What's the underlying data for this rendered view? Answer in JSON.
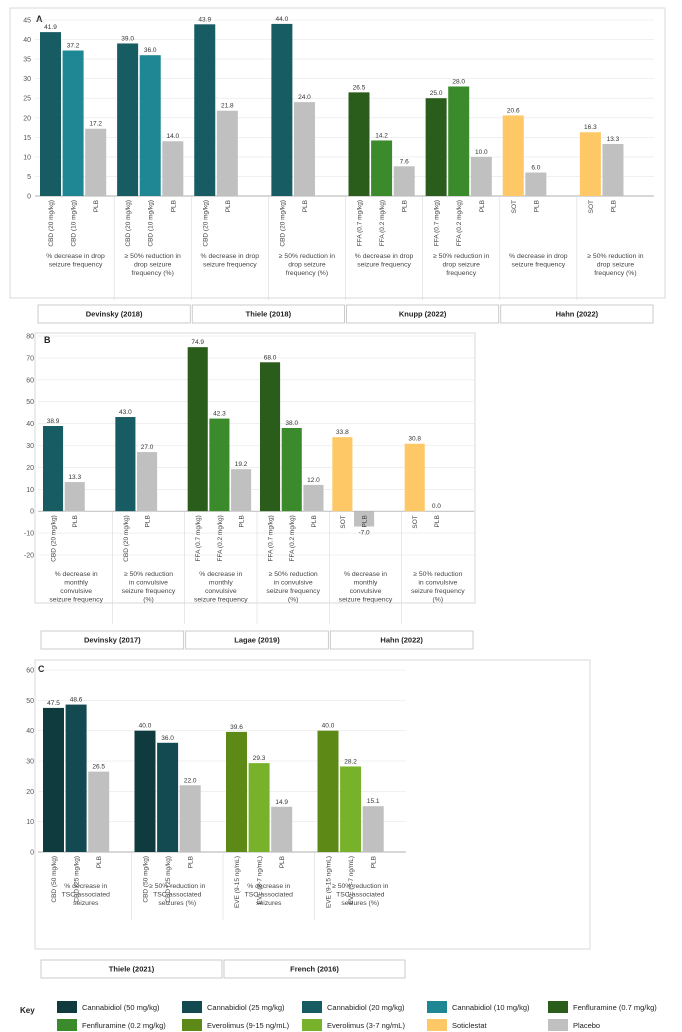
{
  "colors": {
    "cbd50": "#0f3a3e",
    "cbd25": "#134a51",
    "cbd20": "#175b63",
    "cbd10": "#1f8794",
    "ffa07": "#2a5c1c",
    "ffa02": "#3b8a2b",
    "eve915": "#5d8a16",
    "eve37": "#78b22b",
    "sot": "#fdc865",
    "plb": "#c0c0c0"
  },
  "chart_data": [
    {
      "panel": "A",
      "type": "bar",
      "ylim": [
        0,
        45
      ],
      "yticks": [
        0,
        5,
        10,
        15,
        20,
        25,
        30,
        35,
        40,
        45
      ],
      "groups": [
        {
          "label": "% decrease in drop seizure frequency",
          "bars": [
            {
              "label": "CBD (20 mg/kg)",
              "value": 41.9,
              "display": "41.9",
              "color": "cbd20"
            },
            {
              "label": "CBD (10 mg/kg)",
              "value": 37.2,
              "display": "37.2",
              "color": "cbd10"
            },
            {
              "label": "PLB",
              "value": 17.2,
              "display": "17.2",
              "color": "plb"
            }
          ]
        },
        {
          "label": "≥ 50% reduction in drop seizure frequency (%)",
          "bars": [
            {
              "label": "CBD (20 mg/kg)",
              "value": 39.0,
              "display": "39.0",
              "color": "cbd20"
            },
            {
              "label": "CBD (10 mg/kg)",
              "value": 36.0,
              "display": "36.0",
              "color": "cbd10"
            },
            {
              "label": "PLB",
              "value": 14.0,
              "display": "14.0",
              "color": "plb"
            }
          ]
        },
        {
          "label": "% decrease in drop seizure frequency",
          "bars": [
            {
              "label": "CBD (20 mg/kg)",
              "value": 43.9,
              "display": "43.9",
              "color": "cbd20"
            },
            {
              "label": "PLB",
              "value": 21.8,
              "display": "21.8",
              "color": "plb"
            }
          ]
        },
        {
          "label": "≥ 50% reduction in drop seizure frequency (%)",
          "bars": [
            {
              "label": "CBD (20 mg/kg)",
              "value": 44.0,
              "display": "44.0",
              "color": "cbd20"
            },
            {
              "label": "PLB",
              "value": 24.0,
              "display": "24.0",
              "color": "plb"
            }
          ]
        },
        {
          "label": "% decrease in drop seizure frequency",
          "bars": [
            {
              "label": "FFA (0.7 mg/kg)",
              "value": 26.5,
              "display": "26.5",
              "color": "ffa07"
            },
            {
              "label": "FFA (0.2 mg/kg)",
              "value": 14.2,
              "display": "14.2",
              "color": "ffa02"
            },
            {
              "label": "PLB",
              "value": 7.6,
              "display": "7.6",
              "color": "plb"
            }
          ]
        },
        {
          "label": "≥ 50% reduction in drop seizure frequency",
          "bars": [
            {
              "label": "FFA (0.7 mg/kg)",
              "value": 25.0,
              "display": "25.0",
              "color": "ffa07"
            },
            {
              "label": "FFA (0.2 mg/kg)",
              "value": 28.0,
              "display": "28.0",
              "color": "ffa02"
            },
            {
              "label": "PLB",
              "value": 10.0,
              "display": "10.0",
              "color": "plb"
            }
          ]
        },
        {
          "label": "% decrease in drop seizure frequency",
          "bars": [
            {
              "label": "SOT",
              "value": 20.6,
              "display": "20.6",
              "color": "sot"
            },
            {
              "label": "PLB",
              "value": 6.0,
              "display": "6.0",
              "color": "plb"
            }
          ]
        },
        {
          "label": "≥ 50% reduction in drop seizure frequency (%)",
          "bars": [
            {
              "label": "SOT",
              "value": 16.3,
              "display": "16.3",
              "color": "sot"
            },
            {
              "label": "PLB",
              "value": 13.3,
              "display": "13.3",
              "color": "plb"
            }
          ]
        }
      ],
      "studies": [
        {
          "name": "Devinsky (2018)",
          "groups": 2
        },
        {
          "name": "Thiele (2018)",
          "groups": 2
        },
        {
          "name": "Knupp (2022)",
          "groups": 2
        },
        {
          "name": "Hahn (2022)",
          "groups": 2
        }
      ]
    },
    {
      "panel": "B",
      "type": "bar",
      "ylim": [
        -20,
        80
      ],
      "yticks": [
        -20,
        -10,
        0,
        10,
        20,
        30,
        40,
        50,
        60,
        70,
        80
      ],
      "groups": [
        {
          "label": "% decrease in monthly convulsive seizure frequency",
          "bars": [
            {
              "label": "CBD (20 mg/kg)",
              "value": 38.9,
              "display": "38.9",
              "color": "cbd20"
            },
            {
              "label": "PLB",
              "value": 13.3,
              "display": "13.3",
              "color": "plb"
            }
          ]
        },
        {
          "label": "≥ 50% reduction in convulsive seizure frequency (%)",
          "bars": [
            {
              "label": "CBD (20 mg/kg)",
              "value": 43.0,
              "display": "43.0",
              "color": "cbd20"
            },
            {
              "label": "PLB",
              "value": 27.0,
              "display": "27.0",
              "color": "plb"
            }
          ]
        },
        {
          "label": "% decrease in monthly convulsive seizure frequency",
          "bars": [
            {
              "label": "FFA (0.7 mg/kg)",
              "value": 74.9,
              "display": "74.9",
              "color": "ffa07"
            },
            {
              "label": "FFA (0.2 mg/kg)",
              "value": 42.3,
              "display": "42.3",
              "color": "ffa02"
            },
            {
              "label": "PLB",
              "value": 19.2,
              "display": "19.2",
              "color": "plb"
            }
          ]
        },
        {
          "label": "≥ 50% reduction in convulsive seizure frequency (%)",
          "bars": [
            {
              "label": "FFA (0.7 mg/kg)",
              "value": 68.0,
              "display": "68.0",
              "color": "ffa07"
            },
            {
              "label": "FFA (0.2 mg/kg)",
              "value": 38.0,
              "display": "38.0",
              "color": "ffa02"
            },
            {
              "label": "PLB",
              "value": 12.0,
              "display": "12.0",
              "color": "plb"
            }
          ]
        },
        {
          "label": "% decrease in monthly convulsive seizure frequency",
          "bars": [
            {
              "label": "SOT",
              "value": 33.8,
              "display": "33.8",
              "color": "sot"
            },
            {
              "label": "PLB",
              "value": -7.0,
              "display": "-7.0",
              "color": "plb"
            }
          ]
        },
        {
          "label": "≥ 50% reduction in convulsive seizure frequency (%)",
          "bars": [
            {
              "label": "SOT",
              "value": 30.8,
              "display": "30.8",
              "color": "sot"
            },
            {
              "label": "PLB",
              "value": 0.0,
              "display": "0.0",
              "color": "plb"
            }
          ]
        }
      ],
      "studies": [
        {
          "name": "Devinsky (2017)",
          "groups": 2
        },
        {
          "name": "Lagae (2019)",
          "groups": 2
        },
        {
          "name": "Hahn (2022)",
          "groups": 2
        }
      ]
    },
    {
      "panel": "C",
      "type": "bar",
      "ylim": [
        0,
        60
      ],
      "yticks": [
        0,
        10,
        20,
        30,
        40,
        50,
        60
      ],
      "groups": [
        {
          "label": "% decrease in TSC-associated seizures",
          "bars": [
            {
              "label": "CBD (50 mg/kg)",
              "value": 47.5,
              "display": "47.5",
              "color": "cbd50"
            },
            {
              "label": "CBD (25 mg/kg)",
              "value": 48.6,
              "display": "48.6",
              "color": "cbd25"
            },
            {
              "label": "PLB",
              "value": 26.5,
              "display": "26.5",
              "color": "plb"
            }
          ]
        },
        {
          "label": "≥ 50% reduction in TSC-associated seizures (%)",
          "bars": [
            {
              "label": "CBD (50 mg/kg)",
              "value": 40.0,
              "display": "40.0",
              "color": "cbd50"
            },
            {
              "label": "CBD (25 mg/kg)",
              "value": 36.0,
              "display": "36.0",
              "color": "cbd25"
            },
            {
              "label": "PLB",
              "value": 22.0,
              "display": "22.0",
              "color": "plb"
            }
          ]
        },
        {
          "label": "% decrease in TSC-associated seizures",
          "bars": [
            {
              "label": "EVE (9-15 ng/mL)",
              "value": 39.6,
              "display": "39.6",
              "color": "eve915"
            },
            {
              "label": "EVE (3-7 ng/mL)",
              "value": 29.3,
              "display": "29.3",
              "color": "eve37"
            },
            {
              "label": "PLB",
              "value": 14.9,
              "display": "14.9",
              "color": "plb"
            }
          ]
        },
        {
          "label": "≥ 50% reduction in TSC-associated seizures (%)",
          "bars": [
            {
              "label": "EVE (9-15 ng/mL)",
              "value": 40.0,
              "display": "40.0",
              "color": "eve915"
            },
            {
              "label": "EVE (3-7 ng/mL)",
              "value": 28.2,
              "display": "28.2",
              "color": "eve37"
            },
            {
              "label": "PLB",
              "value": 15.1,
              "display": "15.1",
              "color": "plb"
            }
          ]
        }
      ],
      "studies": [
        {
          "name": "Thiele (2021)",
          "groups": 2
        },
        {
          "name": "French (2016)",
          "groups": 2
        }
      ]
    }
  ],
  "key": {
    "title": "Key",
    "items": [
      {
        "label": "Cannabidiol (50 mg/kg)",
        "color": "cbd50"
      },
      {
        "label": "Cannabidiol (25 mg/kg)",
        "color": "cbd25"
      },
      {
        "label": "Cannabidiol (20 mg/kg)",
        "color": "cbd20"
      },
      {
        "label": "Cannabidiol (10 mg/kg)",
        "color": "cbd10"
      },
      {
        "label": "Fenfluramine (0.7 mg/kg)",
        "color": "ffa07"
      },
      {
        "label": "Fenfluramine (0.2 mg/kg)",
        "color": "ffa02"
      },
      {
        "label": "Everolimus (9-15 ng/mL)",
        "color": "eve915"
      },
      {
        "label": "Everolimus (3-7 ng/mL)",
        "color": "eve37"
      },
      {
        "label": "Soticlestat",
        "color": "sot"
      },
      {
        "label": "Placebo",
        "color": "plb"
      }
    ]
  }
}
